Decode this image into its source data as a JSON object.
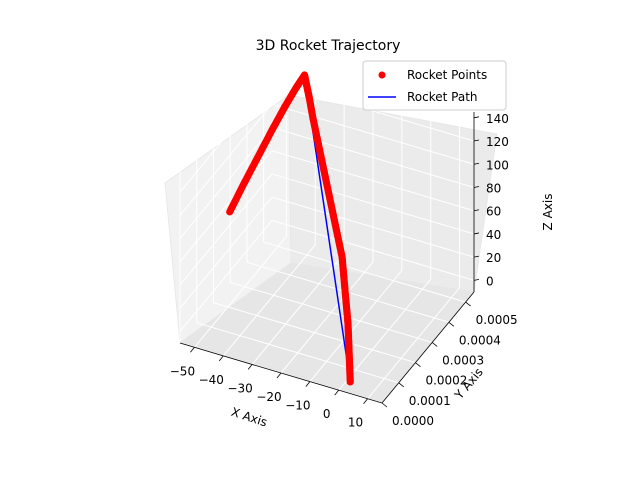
{
  "chart_data": {
    "type": "scatter",
    "projection": "3d",
    "title": "3D Rocket Trajectory",
    "xlabel": "X Axis",
    "ylabel": "Y Axis",
    "zlabel": "Z Axis",
    "xlim": [
      -55,
      15
    ],
    "ylim": [
      0,
      0.00055
    ],
    "zlim": [
      -10,
      145
    ],
    "x_ticks": [
      "−50",
      "−40",
      "−30",
      "−20",
      "−10",
      "0",
      "10"
    ],
    "y_ticks": [
      "0.0000",
      "0.0001",
      "0.0002",
      "0.0003",
      "0.0004",
      "0.0005"
    ],
    "z_ticks": [
      "0",
      "20",
      "40",
      "60",
      "80",
      "100",
      "120",
      "140"
    ],
    "grid": true,
    "legend_position": "top-right",
    "series": [
      {
        "name": "Rocket Points",
        "kind": "scatter",
        "color": "#ff0000",
        "points": [
          [
            4,
            0,
            0
          ],
          [
            2,
            3e-05,
            10
          ],
          [
            0,
            6e-05,
            20
          ],
          [
            -2,
            9e-05,
            30
          ],
          [
            -5,
            0.00013,
            40
          ],
          [
            -8,
            0.00017,
            50
          ],
          [
            -11,
            0.00021,
            60
          ],
          [
            -15,
            0.00025,
            70
          ],
          [
            -19,
            0.00029,
            80
          ],
          [
            -23,
            0.00033,
            90
          ],
          [
            -27,
            0.00037,
            100
          ],
          [
            -31,
            0.00041,
            110
          ],
          [
            -35,
            0.00045,
            120
          ],
          [
            -38,
            0.00048,
            130
          ],
          [
            -40,
            0.0005,
            135
          ],
          [
            -42,
            0.00052,
            140
          ],
          [
            -44,
            0.0005,
            130
          ],
          [
            -46,
            0.00047,
            118
          ],
          [
            -48,
            0.00043,
            104
          ],
          [
            -50,
            0.00038,
            88
          ],
          [
            -52,
            0.00033,
            72
          ],
          [
            -54,
            0.00028,
            55
          ]
        ]
      },
      {
        "name": "Rocket Path",
        "kind": "line",
        "color": "#0000ff",
        "points": [
          [
            4,
            0,
            0
          ],
          [
            -42,
            0.00052,
            140
          ]
        ]
      }
    ]
  }
}
